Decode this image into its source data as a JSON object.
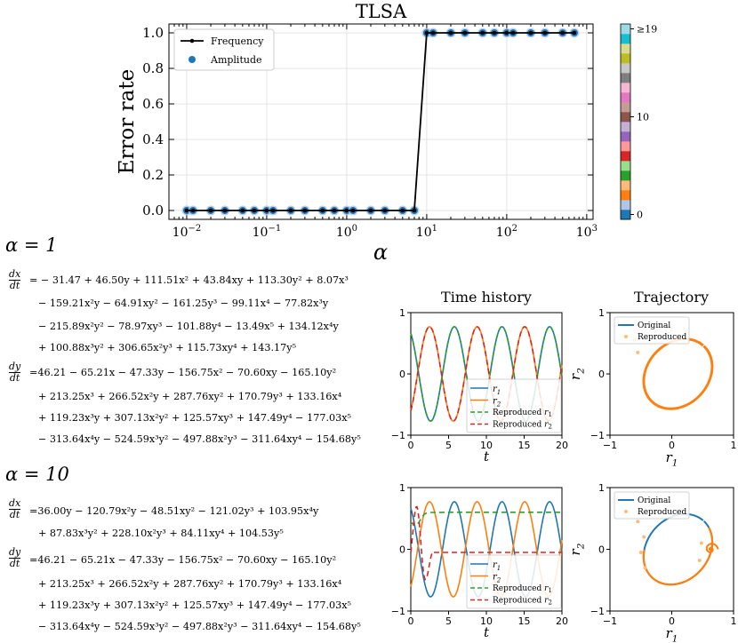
{
  "chart_data": [
    {
      "type": "line",
      "title": "TLSA",
      "xlabel": "α",
      "ylabel": "Error rate",
      "xscale": "log",
      "xlim": [
        0.006,
        1200
      ],
      "ylim": [
        -0.05,
        1.05
      ],
      "xticks": [
        "10−2",
        "10−1",
        "100",
        "101",
        "102",
        "103"
      ],
      "yticks": [
        "0.0",
        "0.2",
        "0.4",
        "0.6",
        "0.8",
        "1.0"
      ],
      "legend": [
        "Frequency",
        "Amplitude"
      ],
      "series": [
        {
          "name": "Frequency",
          "color": "#000000",
          "x": [
            0.01,
            0.012,
            0.02,
            0.03,
            0.05,
            0.07,
            0.1,
            0.12,
            0.2,
            0.3,
            0.5,
            0.7,
            1,
            1.2,
            2,
            3,
            5,
            7,
            10,
            12,
            20,
            30,
            50,
            70,
            100,
            120,
            200,
            300,
            500,
            700
          ],
          "y": [
            0,
            0,
            0,
            0,
            0,
            0,
            0,
            0,
            0,
            0,
            0,
            0,
            0,
            0,
            0,
            0,
            0,
            0,
            1,
            1,
            1,
            1,
            1,
            1,
            1,
            1,
            1,
            1,
            1,
            1
          ]
        },
        {
          "name": "Amplitude",
          "color": "#1f77b4",
          "x": [
            0.01,
            0.012,
            0.02,
            0.03,
            0.05,
            0.07,
            0.1,
            0.12,
            0.2,
            0.3,
            0.5,
            0.7,
            1,
            1.2,
            2,
            3,
            5,
            7,
            10,
            12,
            20,
            30,
            50,
            70,
            100,
            120,
            200,
            300,
            500,
            700
          ],
          "y": [
            0,
            0,
            0,
            0,
            0,
            0,
            0,
            0,
            0,
            0,
            0,
            0,
            0,
            0,
            0,
            0,
            0,
            0,
            1,
            1,
            1,
            1,
            1,
            1,
            1,
            1,
            1,
            1,
            1,
            1
          ]
        }
      ],
      "colorbar": {
        "labels": [
          "0",
          "10",
          "≥19"
        ],
        "colors": [
          "#1f77b4",
          "#aec7e8",
          "#ff7f0e",
          "#ffbb78",
          "#2ca02c",
          "#98df8a",
          "#d62728",
          "#ff9896",
          "#9467bd",
          "#c5b0d5",
          "#8c564b",
          "#c49c94",
          "#e377c2",
          "#f7b6d2",
          "#7f7f7f",
          "#c7c7c7",
          "#bcbd22",
          "#dbdb8d",
          "#17becf",
          "#9edae5"
        ]
      }
    },
    {
      "type": "line",
      "title": "Time history",
      "panel": "alpha=1",
      "xlabel": "t",
      "ylabel": "",
      "xlim": [
        0,
        20
      ],
      "ylim": [
        -1,
        1
      ],
      "xticks": [
        "0",
        "5",
        "10",
        "15",
        "20"
      ],
      "yticks": [
        "−1",
        "0",
        "1"
      ],
      "legend": [
        "r1",
        "r2",
        "Reproduced r1",
        "Reproduced r2"
      ]
    },
    {
      "type": "scatter",
      "title": "Trajectory",
      "panel": "alpha=1",
      "xlabel": "r1",
      "ylabel": "r2",
      "xlim": [
        -1,
        1
      ],
      "ylim": [
        -1,
        1
      ],
      "xticks": [
        "−1",
        "0",
        "1"
      ],
      "yticks": [
        "−1",
        "0",
        "1"
      ],
      "legend": [
        "Original",
        "Reproduced"
      ]
    },
    {
      "type": "line",
      "title": "",
      "panel": "alpha=10",
      "xlabel": "t",
      "ylabel": "",
      "xlim": [
        0,
        20
      ],
      "ylim": [
        -1,
        1
      ],
      "xticks": [
        "0",
        "5",
        "10",
        "15",
        "20"
      ],
      "yticks": [
        "−1",
        "0",
        "1"
      ],
      "legend": [
        "r1",
        "r2",
        "Reproduced r1",
        "Reproduced r2"
      ]
    },
    {
      "type": "scatter",
      "title": "",
      "panel": "alpha=10",
      "xlabel": "r1",
      "ylabel": "r2",
      "xlim": [
        -1,
        1
      ],
      "ylim": [
        -1,
        1
      ],
      "xticks": [
        "−1",
        "0",
        "1"
      ],
      "yticks": [
        "−1",
        "0",
        "1"
      ],
      "legend": [
        "Original",
        "Reproduced"
      ]
    }
  ],
  "labels": {
    "alpha1": "α = 1",
    "alpha10": "α = 10",
    "time_history": "Time history",
    "trajectory": "Trajectory",
    "leg_r1": "r1",
    "leg_r2": "r2",
    "leg_rep_r1": "Reproduced r1",
    "leg_rep_r2": "Reproduced r2",
    "leg_original": "Original",
    "leg_reproduced": "Reproduced"
  },
  "equations": {
    "alpha1": {
      "dx_lhs_num": "dx",
      "dx_lhs_den": "dt",
      "dx": [
        "= − 31.47 + 46.50y + 111.51x² + 43.84xy + 113.30y² + 8.07x³",
        "− 159.21x²y − 64.91xy² − 161.25y³ − 99.11x⁴ − 77.82x³y",
        "− 215.89x²y² − 78.97xy³ − 101.88y⁴ − 13.49x⁵ + 134.12x⁴y",
        "+ 100.88x³y² + 306.65x²y³ + 115.73xy⁴ + 143.17y⁵"
      ],
      "dy_lhs_num": "dy",
      "dy_lhs_den": "dt",
      "dy": [
        "=46.21 − 65.21x − 47.33y − 156.75x² − 70.60xy − 165.10y²",
        "+ 213.25x³ + 266.52x²y + 287.76xy² + 170.79y³ + 133.16x⁴",
        "+ 119.23x³y + 307.13x²y² + 125.57xy³ + 147.49y⁴ − 177.03x⁵",
        "− 313.64x⁴y − 524.59x³y² − 497.88x²y³ − 311.64xy⁴ − 154.68y⁵"
      ]
    },
    "alpha10": {
      "dx_lhs_num": "dx",
      "dx_lhs_den": "dt",
      "dx": [
        "=36.00y − 120.79x²y − 48.51xy² − 121.02y³ + 103.95x⁴y",
        "+ 87.83x³y² + 228.10x²y³ + 84.11xy⁴ + 104.53y⁵"
      ],
      "dy_lhs_num": "dy",
      "dy_lhs_den": "dt",
      "dy": [
        "=46.21 − 65.21x − 47.33y − 156.75x² − 70.60xy − 165.10y²",
        "+ 213.25x³ + 266.52x²y + 287.76xy² + 170.79y³ + 133.16x⁴",
        "+ 119.23x³y + 307.13x²y² + 125.57xy³ + 147.49y⁴ − 177.03x⁵",
        "− 313.64x⁴y − 524.59x³y² − 497.88x²y³ − 311.64xy⁴ − 154.68y⁵"
      ]
    }
  }
}
